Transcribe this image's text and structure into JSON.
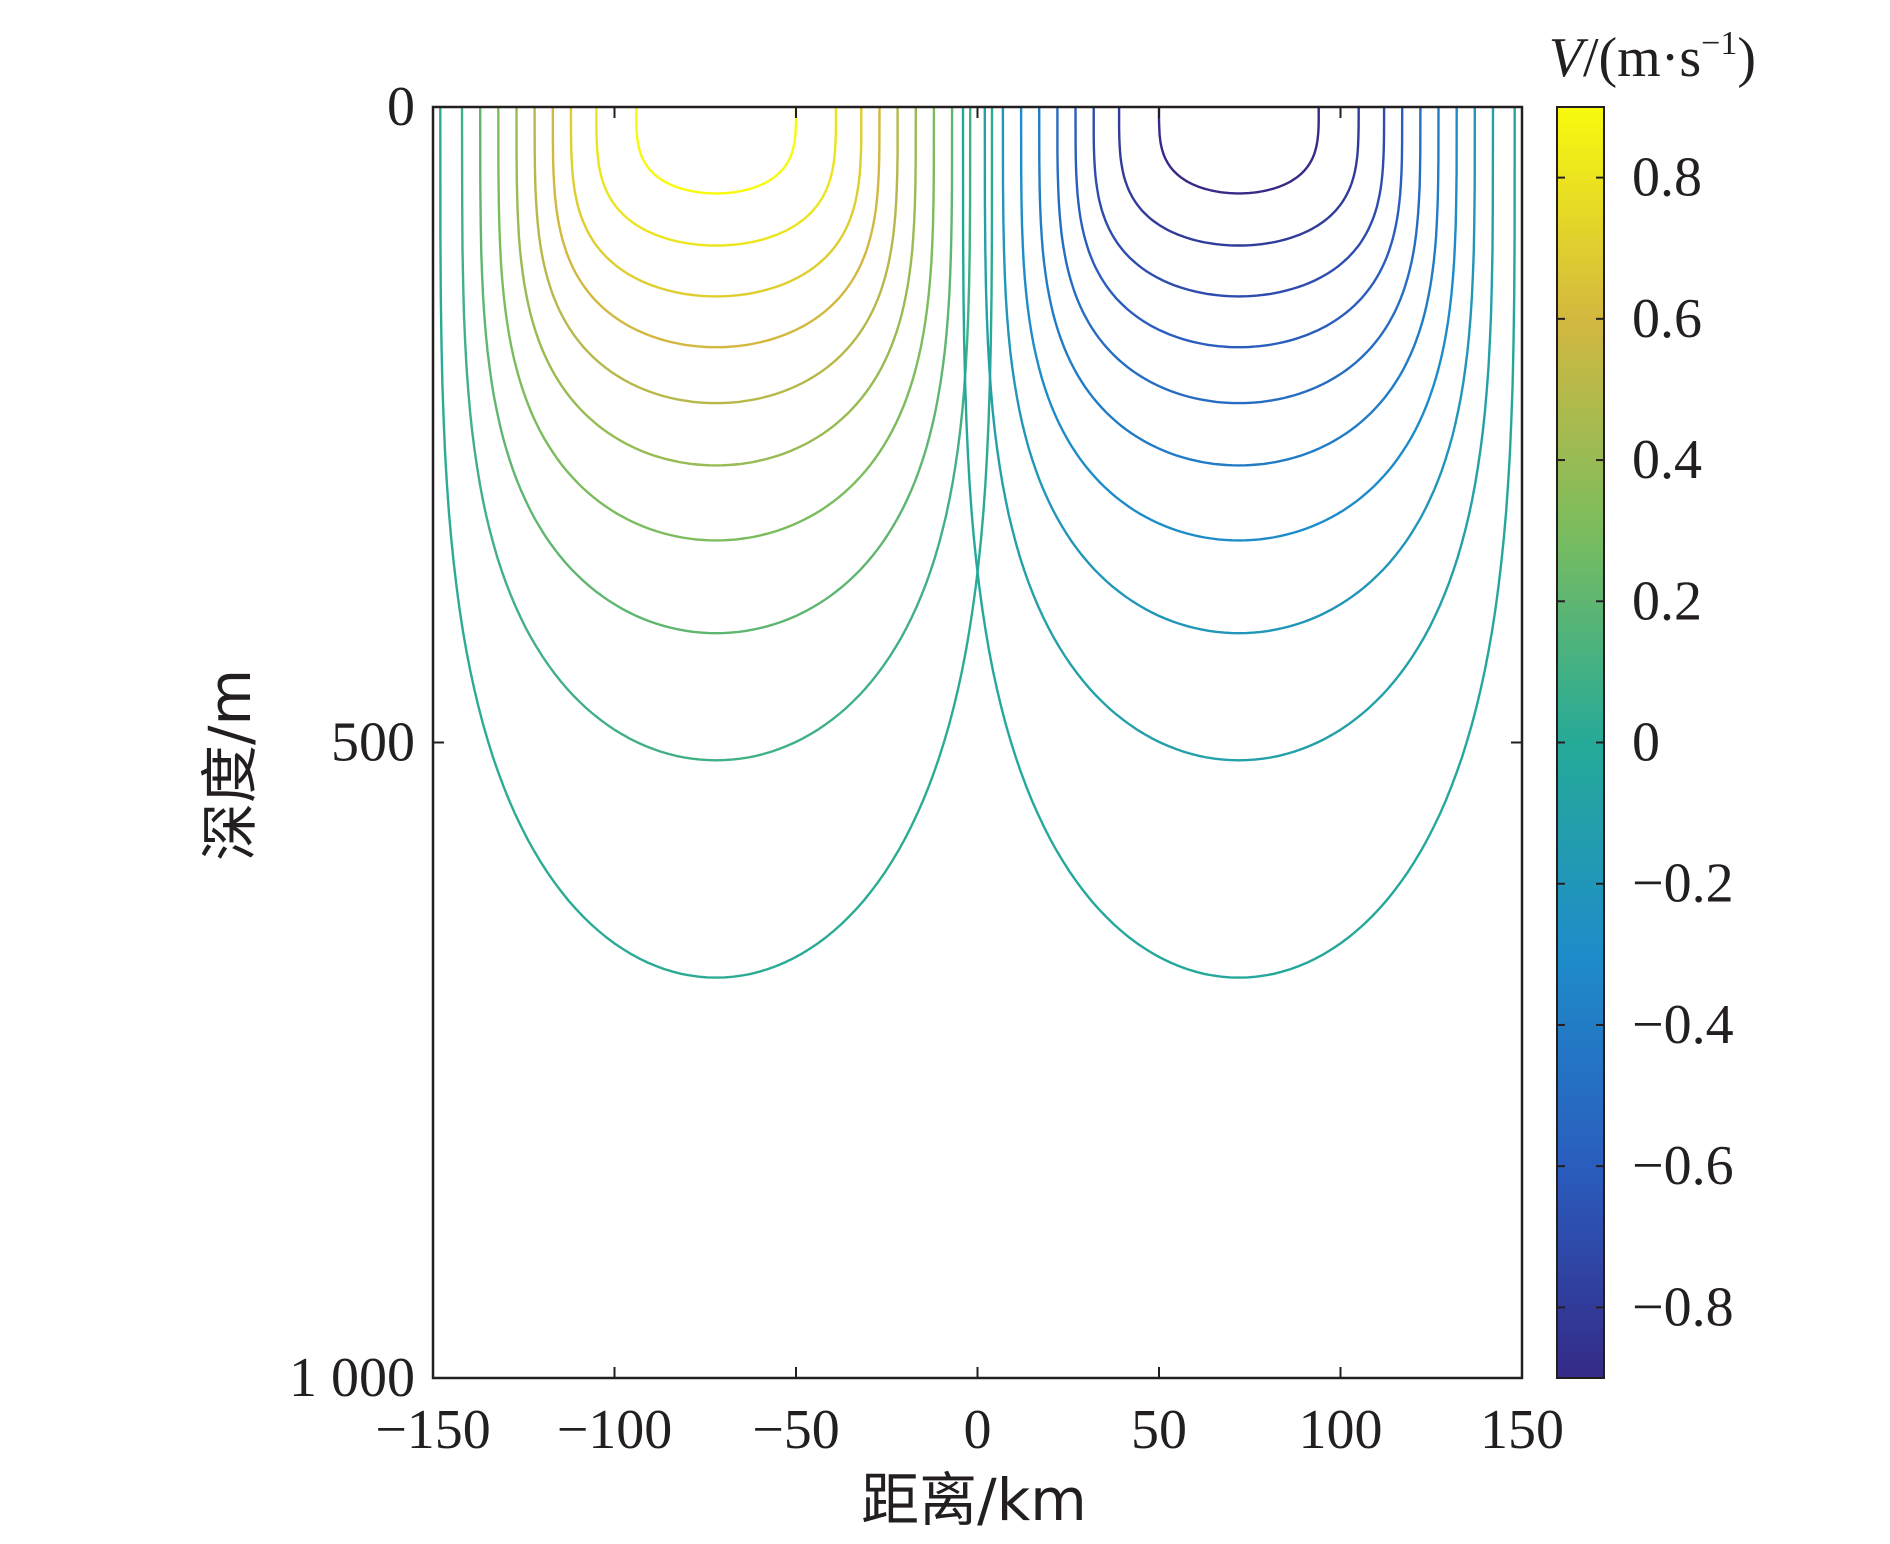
{
  "chart_data": {
    "type": "contour",
    "xlabel": "距离/km",
    "ylabel": "深度/m",
    "colorbar_label": "V/(m·s⁻¹)",
    "colorbar_label_parts": {
      "var": "V",
      "unit": "/(m·s",
      "exp": "−1",
      "close": ")"
    },
    "xlim": [
      -150,
      150
    ],
    "ylim": [
      0,
      1000
    ],
    "y_reversed": true,
    "x_ticks": [
      {
        "v": -150,
        "label": "−150"
      },
      {
        "v": -100,
        "label": "−100"
      },
      {
        "v": -50,
        "label": "−50"
      },
      {
        "v": 0,
        "label": "0"
      },
      {
        "v": 50,
        "label": "50"
      },
      {
        "v": 100,
        "label": "100"
      },
      {
        "v": 150,
        "label": "150"
      }
    ],
    "y_ticks": [
      {
        "v": 0,
        "label": "0"
      },
      {
        "v": 500,
        "label": "500"
      },
      {
        "v": 1000,
        "label": "1 000"
      }
    ],
    "colorbar": {
      "range": [
        -0.9,
        0.9
      ],
      "ticks": [
        {
          "v": 0.8,
          "label": "0.8"
        },
        {
          "v": 0.6,
          "label": "0.6"
        },
        {
          "v": 0.4,
          "label": "0.4"
        },
        {
          "v": 0.2,
          "label": "0.2"
        },
        {
          "v": 0,
          "label": "0"
        },
        {
          "v": -0.2,
          "label": "−0.2"
        },
        {
          "v": -0.4,
          "label": "−0.4"
        },
        {
          "v": -0.6,
          "label": "−0.6"
        },
        {
          "v": -0.8,
          "label": "−0.8"
        }
      ],
      "colormap": [
        "#352a87",
        "#2a5dbe",
        "#1e8cc9",
        "#26aa98",
        "#7bbc5e",
        "#d3b840",
        "#f8fa0d"
      ]
    },
    "eddies": [
      {
        "center_x": -72,
        "sign": 1,
        "extent_x": [
          -148,
          4
        ],
        "extent_depth": 693
      },
      {
        "center_x": 72,
        "sign": -1,
        "extent_x": [
          4,
          148
        ],
        "extent_depth": 693
      }
    ],
    "contour_levels": [
      {
        "level": 0.9,
        "half_width_km": 22,
        "depth_m": 68
      },
      {
        "level": 0.8,
        "half_width_km": 33,
        "depth_m": 109
      },
      {
        "level": 0.7,
        "half_width_km": 40,
        "depth_m": 149
      },
      {
        "level": 0.6,
        "half_width_km": 45,
        "depth_m": 189
      },
      {
        "level": 0.5,
        "half_width_km": 50,
        "depth_m": 233
      },
      {
        "level": 0.4,
        "half_width_km": 55,
        "depth_m": 282
      },
      {
        "level": 0.3,
        "half_width_km": 60,
        "depth_m": 341
      },
      {
        "level": 0.2,
        "half_width_km": 65,
        "depth_m": 414
      },
      {
        "level": 0.1,
        "half_width_km": 70,
        "depth_m": 514
      },
      {
        "level": 0.02,
        "half_width_km": 76,
        "depth_m": 685
      }
    ]
  }
}
